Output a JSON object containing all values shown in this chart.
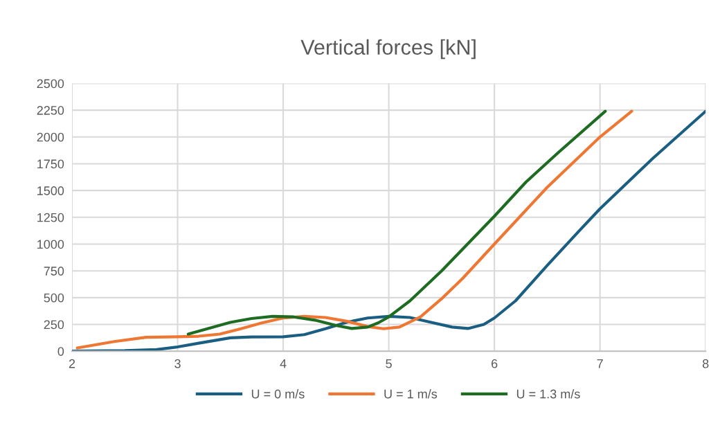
{
  "chart_data": {
    "type": "line",
    "title": "Vertical forces [kN]",
    "xlim": [
      2,
      8
    ],
    "xticks": [
      2,
      3,
      4,
      5,
      6,
      7,
      8
    ],
    "ylim": [
      0,
      2500
    ],
    "yticks": [
      0,
      250,
      500,
      750,
      1000,
      1250,
      1500,
      1750,
      2000,
      2250,
      2500
    ],
    "grid": true,
    "legend": "bottom",
    "marker": "none",
    "line_style": "solid",
    "series": [
      {
        "name": "U = 0 m/s",
        "color": "#1a5f82",
        "x": [
          2,
          2.5,
          2.8,
          3,
          3.2,
          3.5,
          3.7,
          4,
          4.2,
          4.4,
          4.6,
          4.8,
          5,
          5.2,
          5.4,
          5.6,
          5.75,
          5.9,
          6,
          6.2,
          6.5,
          6.8,
          7,
          7.5,
          8
        ],
        "values": [
          0,
          5,
          15,
          40,
          75,
          125,
          133,
          135,
          155,
          210,
          270,
          310,
          325,
          315,
          270,
          225,
          212,
          250,
          310,
          470,
          800,
          1120,
          1330,
          1800,
          2240
        ]
      },
      {
        "name": "U = 1 m/s",
        "color": "#ee7733",
        "x": [
          2.05,
          2.4,
          2.7,
          3,
          3.2,
          3.4,
          3.6,
          3.8,
          4,
          4.2,
          4.4,
          4.6,
          4.8,
          4.95,
          5.1,
          5.3,
          5.5,
          5.7,
          6,
          6.5,
          7,
          7.3
        ],
        "values": [
          30,
          90,
          130,
          135,
          140,
          160,
          210,
          265,
          310,
          325,
          315,
          280,
          230,
          210,
          225,
          320,
          490,
          680,
          1000,
          1530,
          2000,
          2240
        ]
      },
      {
        "name": "U = 1.3 m/s",
        "color": "#1e6b22",
        "x": [
          3.1,
          3.3,
          3.5,
          3.7,
          3.9,
          4.1,
          4.3,
          4.5,
          4.65,
          4.8,
          4.9,
          5,
          5.2,
          5.5,
          6,
          6.3,
          6.6,
          7.05
        ],
        "values": [
          160,
          215,
          270,
          305,
          325,
          320,
          290,
          240,
          212,
          225,
          265,
          320,
          470,
          750,
          1260,
          1580,
          1850,
          2240
        ]
      }
    ]
  }
}
